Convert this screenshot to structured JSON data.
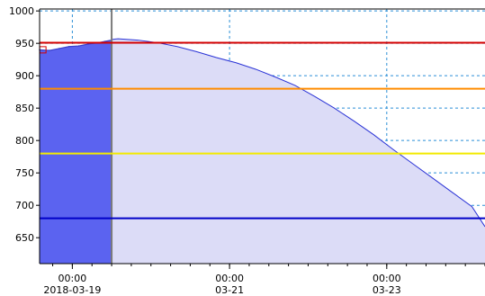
{
  "chart_data": {
    "type": "area",
    "title": "",
    "xlabel": "",
    "ylabel": "",
    "xlim": [
      "2018-03-18 14:00",
      "2018-03-24 06:00"
    ],
    "ylim": [
      610,
      1003
    ],
    "y_ticks": [
      1000,
      950,
      900,
      850,
      800,
      750,
      700,
      650
    ],
    "x_ticks": [
      {
        "t": "2018-03-19 00:00",
        "line1": "00:00",
        "line2": "2018-03-19"
      },
      {
        "t": "2018-03-21 00:00",
        "line1": "00:00",
        "line2": "03-21"
      },
      {
        "t": "2018-03-23 00:00",
        "line1": "00:00",
        "line2": "03-23"
      }
    ],
    "grid": true,
    "current_time": "2018-03-19 12:00",
    "series": [
      {
        "kind": "history",
        "color": "#5b63f0",
        "points": [
          [
            "2018-03-18 14:00",
            940
          ],
          [
            "2018-03-18 17:00",
            939
          ],
          [
            "2018-03-18 20:00",
            942
          ],
          [
            "2018-03-18 23:00",
            945
          ],
          [
            "2018-03-19 02:00",
            946
          ],
          [
            "2018-03-19 05:00",
            949
          ],
          [
            "2018-03-19 08:00",
            951
          ],
          [
            "2018-03-19 10:00",
            953
          ],
          [
            "2018-03-19 12:00",
            955
          ]
        ]
      },
      {
        "kind": "forecast",
        "color": "#2a33d6",
        "fill": "#dcdcf7",
        "points": [
          [
            "2018-03-19 12:00",
            956
          ],
          [
            "2018-03-19 14:00",
            957
          ],
          [
            "2018-03-19 20:00",
            955
          ],
          [
            "2018-03-20 02:00",
            951
          ],
          [
            "2018-03-20 08:00",
            945
          ],
          [
            "2018-03-20 14:00",
            937
          ],
          [
            "2018-03-20 20:00",
            928
          ],
          [
            "2018-03-21 02:00",
            920
          ],
          [
            "2018-03-21 08:00",
            910
          ],
          [
            "2018-03-21 14:00",
            898
          ],
          [
            "2018-03-21 20:00",
            885
          ],
          [
            "2018-03-22 02:00",
            868
          ],
          [
            "2018-03-22 08:00",
            850
          ],
          [
            "2018-03-22 14:00",
            830
          ],
          [
            "2018-03-22 20:00",
            809
          ],
          [
            "2018-03-23 02:00",
            786
          ],
          [
            "2018-03-23 08:00",
            764
          ],
          [
            "2018-03-23 14:00",
            742
          ],
          [
            "2018-03-23 20:00",
            720
          ],
          [
            "2018-03-24 02:00",
            698
          ],
          [
            "2018-03-24 06:00",
            667
          ]
        ]
      }
    ],
    "thresholds": [
      {
        "value": 951,
        "color": "#d40000"
      },
      {
        "value": 880,
        "color": "#ff8c00"
      },
      {
        "value": 780,
        "color": "#f2ea00"
      },
      {
        "value": 680,
        "color": "#0000c8"
      }
    ],
    "markers": [
      {
        "t": "2018-03-18 15:00",
        "value": 940,
        "shape": "square-outline",
        "color": "#d40000"
      }
    ]
  }
}
